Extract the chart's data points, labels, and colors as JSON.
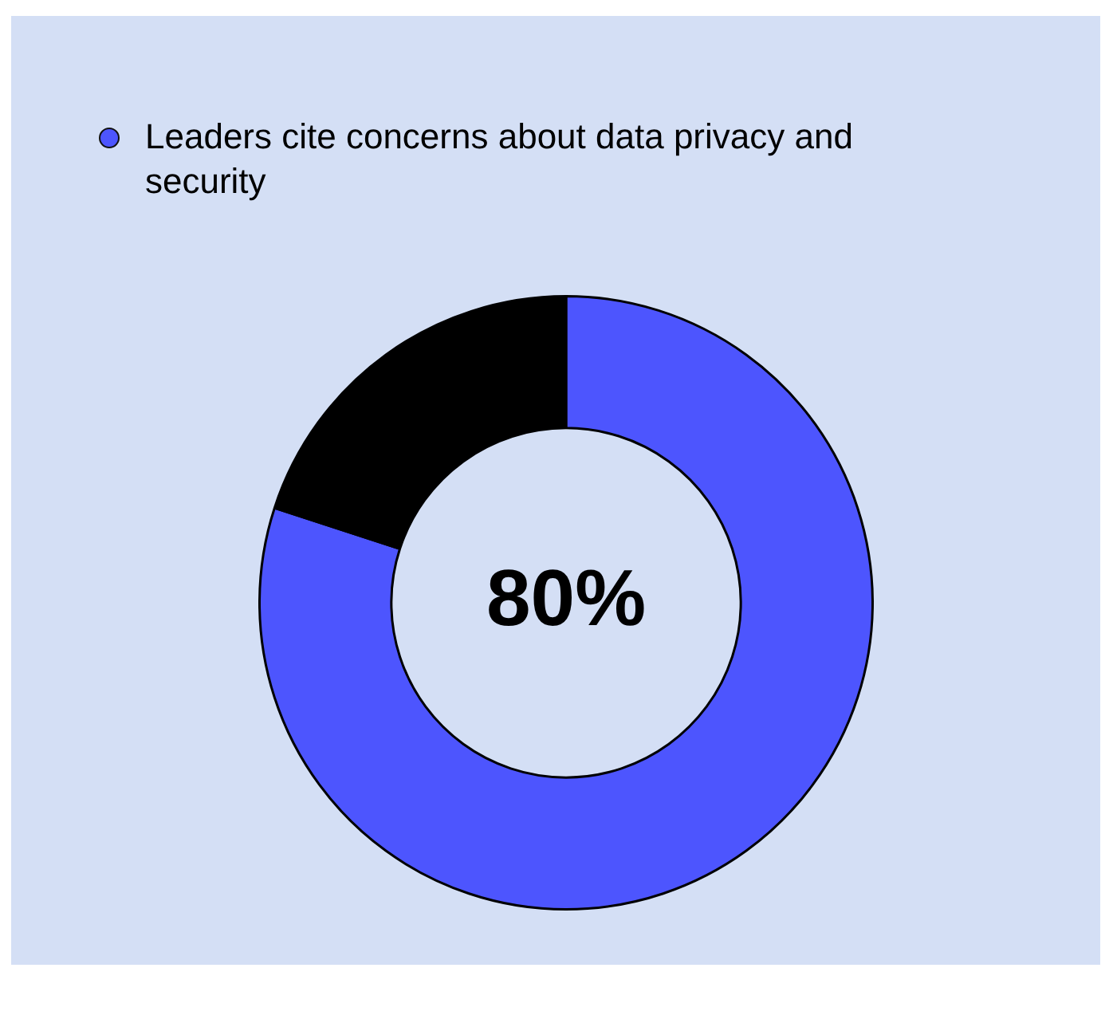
{
  "chart_data": {
    "type": "donut",
    "categories": [
      "Leaders cite concerns about data privacy and security",
      null
    ],
    "values": [
      80,
      20
    ],
    "colors": [
      "#4d55fe",
      "#000000"
    ],
    "value_labels": [
      "80%",
      null
    ],
    "legend": "top left"
  }
}
